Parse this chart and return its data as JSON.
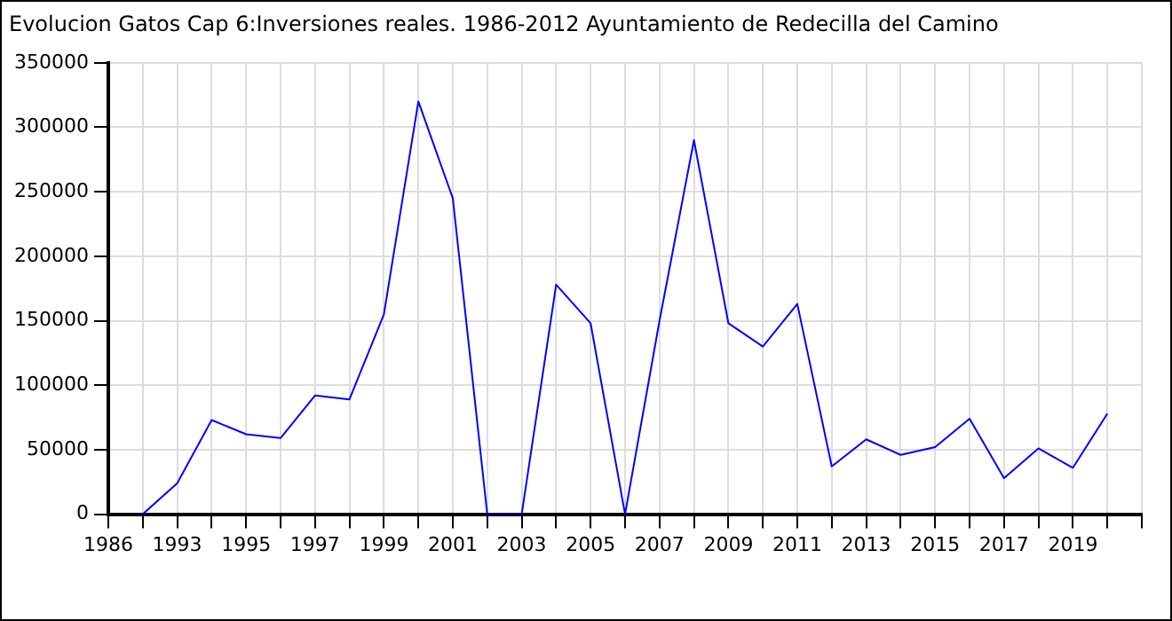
{
  "chart_data": {
    "type": "line",
    "title": "Evolucion Gatos Cap 6:Inversiones reales. 1986-2012 Ayuntamiento de Redecilla del Camino",
    "categories": [
      "1986",
      null,
      "1993",
      null,
      "1995",
      null,
      "1997",
      null,
      "1999",
      null,
      "2001",
      null,
      "2003",
      null,
      "2005",
      null,
      "2007",
      null,
      "2009",
      null,
      "2011",
      null,
      "2013",
      null,
      "2015",
      null,
      "2017",
      null,
      "2019",
      null,
      null
    ],
    "series": [
      {
        "color": "#0000ff",
        "values": [
          null,
          0,
          24000,
          73000,
          62000,
          59000,
          92000,
          89000,
          155000,
          320000,
          245000,
          0,
          0,
          178000,
          148000,
          0,
          150000,
          290000,
          148000,
          130000,
          163000,
          37000,
          58000,
          46000,
          52000,
          74000,
          28000,
          51000,
          36000,
          78000,
          null
        ]
      }
    ],
    "ylim": [
      0,
      350000
    ],
    "yticks": [
      0,
      50000,
      100000,
      150000,
      200000,
      250000,
      300000,
      350000
    ],
    "grid": true,
    "legend": false,
    "marker": "none",
    "line_style": "solid"
  }
}
